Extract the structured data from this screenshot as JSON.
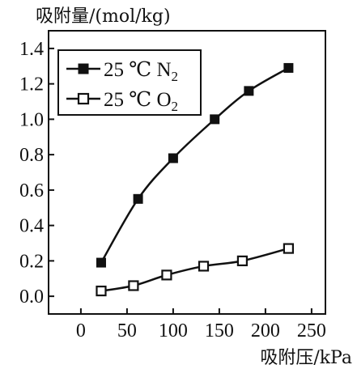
{
  "chart_data": {
    "type": "line",
    "xlabel": "吸附压/kPa",
    "ylabel": "吸附量/(mol/kg)",
    "xlim": [
      -35,
      265
    ],
    "ylim": [
      -0.1,
      1.5
    ],
    "x_ticks": [
      0,
      50,
      100,
      150,
      200,
      250
    ],
    "x_tick_labels": [
      "0",
      "50",
      "100",
      "150",
      "200",
      "250"
    ],
    "y_ticks": [
      0.0,
      0.2,
      0.4,
      0.6,
      0.8,
      1.0,
      1.2,
      1.4
    ],
    "y_tick_labels": [
      "0.0",
      "0.2",
      "0.4",
      "0.6",
      "0.8",
      "1.0",
      "1.2",
      "1.4"
    ],
    "grid": false,
    "legend_position": "top-left",
    "series": [
      {
        "name_main": "25 ℃ N",
        "name_sub": "2",
        "marker": "filled-square",
        "color": "#111111",
        "x": [
          22,
          62,
          100,
          145,
          182,
          225
        ],
        "y": [
          0.19,
          0.55,
          0.78,
          1.0,
          1.16,
          1.29
        ]
      },
      {
        "name_main": "25 ℃ O",
        "name_sub": "2",
        "marker": "open-square",
        "color": "#111111",
        "x": [
          22,
          57,
          93,
          133,
          175,
          225
        ],
        "y": [
          0.03,
          0.06,
          0.12,
          0.17,
          0.2,
          0.27
        ]
      }
    ]
  }
}
